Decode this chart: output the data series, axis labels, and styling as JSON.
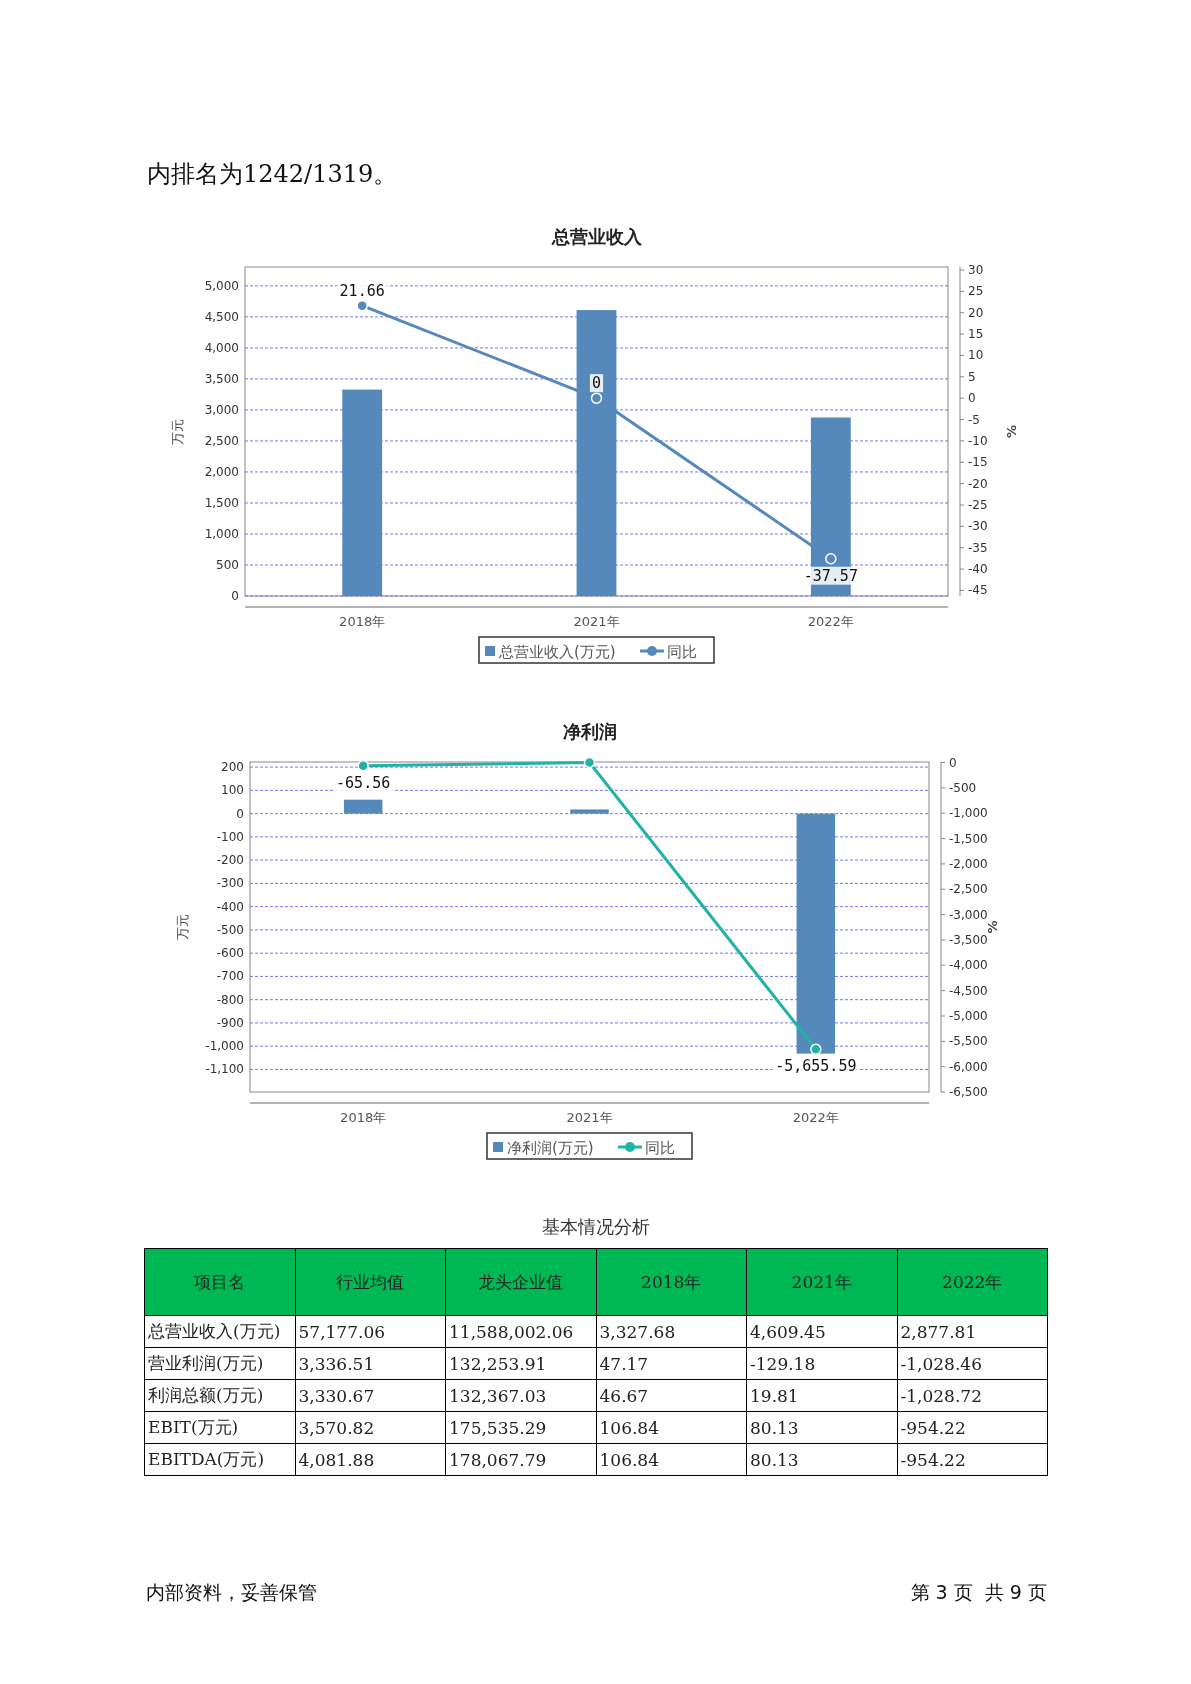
{
  "chart_data": [
    {
      "type": "bar",
      "title": "总营业收入",
      "categories": [
        "2018年",
        "2021年",
        "2022年"
      ],
      "ylabel": "万元",
      "y2label": "%",
      "ylim": [
        0,
        5304
      ],
      "yticks": [
        0,
        500,
        {
          "value": 1000,
          "label": "1,000"
        },
        {
          "value": 1500,
          "label": "1,500"
        },
        {
          "value": 2000,
          "label": "2,000"
        },
        {
          "value": 2500,
          "label": "2,500"
        },
        {
          "value": 3000,
          "label": "3,000"
        },
        {
          "value": 3500,
          "label": "3,500"
        },
        {
          "value": 4000,
          "label": "4,000"
        },
        {
          "value": 4500,
          "label": "4,500"
        },
        {
          "value": 5000,
          "label": "5,000"
        }
      ],
      "y2lim": [
        -46.3,
        30.7
      ],
      "y2ticks": [
        30,
        25,
        20,
        15,
        10,
        5,
        0,
        -5,
        -10,
        -15,
        -20,
        -25,
        -30,
        -35,
        -40,
        -45
      ],
      "grid": "y",
      "legend": "bottom",
      "annotations": [
        "内排名为1242/1319。"
      ],
      "series": [
        {
          "name": "总营业收入(万元)",
          "type": "bar",
          "color": "#5588bb",
          "values": [
            3327.68,
            4609.45,
            2877.81
          ]
        },
        {
          "name": "同比",
          "type": "line",
          "axis": "y2",
          "marker": "circle",
          "color": "#5588bb",
          "values": [
            21.66,
            0,
            -37.57
          ],
          "value_labels": [
            "21.66",
            "0",
            "-37.57"
          ]
        }
      ]
    },
    {
      "type": "bar",
      "title": "净利润",
      "categories": [
        "2018年",
        "2021年",
        "2022年"
      ],
      "ylabel": "万元",
      "y2label": "%",
      "ylim": [
        -1197,
        222
      ],
      "yticks": [
        200,
        100,
        0,
        -100,
        -200,
        -300,
        -400,
        -500,
        -600,
        -700,
        -800,
        -900,
        {
          "value": -1000,
          "label": "-1,000"
        },
        {
          "value": -1100,
          "label": "-1,100"
        }
      ],
      "y2lim": [
        -6500,
        10
      ],
      "y2ticks": [
        0,
        -500,
        {
          "value": -1000,
          "label": "-1,000"
        },
        {
          "value": -1500,
          "label": "-1,500"
        },
        {
          "value": -2000,
          "label": "-2,000"
        },
        {
          "value": -2500,
          "label": "-2,500"
        },
        {
          "value": -3000,
          "label": "-3,000"
        },
        {
          "value": -3500,
          "label": "-3,500"
        },
        {
          "value": -4000,
          "label": "-4,000"
        },
        {
          "value": -4500,
          "label": "-4,500"
        },
        {
          "value": -5000,
          "label": "-5,000"
        },
        {
          "value": -5500,
          "label": "-5,500"
        },
        {
          "value": -6000,
          "label": "-6,000"
        },
        {
          "value": -6500,
          "label": "-6,500"
        }
      ],
      "grid": "y",
      "legend": "bottom",
      "series": [
        {
          "name": "净利润(万元)",
          "type": "bar",
          "color": "#5588bb",
          "values": [
            60,
            18,
            -1032
          ]
        },
        {
          "name": "同比",
          "type": "line",
          "axis": "y2",
          "marker": "circle",
          "color": "#22b2a6",
          "values": [
            -65.56,
            0,
            -5655.59
          ],
          "value_labels": [
            "-65.56",
            null,
            "-5,655.59"
          ]
        }
      ]
    },
    {
      "type": "other",
      "title": "基本情况分析",
      "color": "#00b853",
      "categories": [
        "项目名",
        "行业均值",
        "龙头企业值",
        "2018年",
        "2021年",
        "2022年"
      ],
      "y_categories": [
        "总营业收入(万元)",
        "营业利润(万元)",
        "利润总额(万元)",
        "EBIT(万元)",
        "EBITDA(万元)"
      ],
      "cell_labels": [
        [
          "57,177.06",
          "11,588,002.06",
          "3,327.68",
          "4,609.45",
          "2,877.81"
        ],
        [
          "3,336.51",
          "132,253.91",
          "47.17",
          "-129.18",
          "-1,028.46"
        ],
        [
          "3,330.67",
          "132,367.03",
          "46.67",
          "19.81",
          "-1,028.72"
        ],
        [
          "3,570.82",
          "175,535.29",
          "106.84",
          "80.13",
          "-954.22"
        ],
        [
          "4,081.88",
          "178,067.79",
          "106.84",
          "80.13",
          "-954.22"
        ]
      ],
      "annotations": [
        "内部资料，妥善保管",
        "第 3 页  共 9 页"
      ]
    }
  ]
}
